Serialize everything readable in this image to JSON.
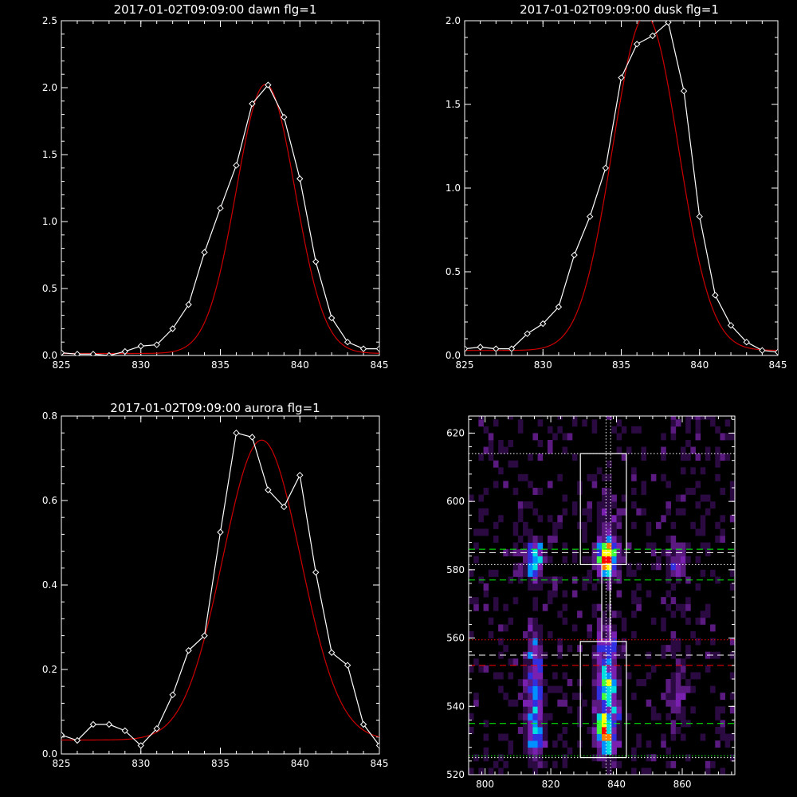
{
  "chart_data": [
    {
      "type": "line",
      "title": "2017-01-02T09:09:00 dawn flg=1",
      "xlim": [
        825,
        845
      ],
      "ylim": [
        0,
        2.5
      ],
      "xticks": [
        825,
        830,
        835,
        840,
        845
      ],
      "yticks": [
        0.0,
        0.5,
        1.0,
        1.5,
        2.0,
        2.5
      ],
      "ytick_labels": [
        "0.0",
        "0.5",
        "1.0",
        "1.5",
        "2.0",
        "2.5"
      ],
      "series": [
        {
          "kind": "data",
          "color": "#ffffff",
          "marker": "diamond",
          "x": [
            825,
            826,
            827,
            828,
            829,
            830,
            831,
            832,
            833,
            834,
            835,
            836,
            837,
            838,
            839,
            840,
            841,
            842,
            843,
            844,
            845
          ],
          "y": [
            0.02,
            0.01,
            0.01,
            0.0,
            0.03,
            0.07,
            0.08,
            0.2,
            0.38,
            0.77,
            1.1,
            1.42,
            1.88,
            2.02,
            1.78,
            1.32,
            0.7,
            0.28,
            0.1,
            0.05,
            0.05
          ]
        },
        {
          "kind": "fit",
          "color": "#cc0000",
          "model": "gaussian",
          "amp": 2.01,
          "center": 837.85,
          "sigma": 1.85,
          "offset": 0.015
        }
      ]
    },
    {
      "type": "line",
      "title": "2017-01-02T09:09:00 dusk flg=1",
      "xlim": [
        825,
        845
      ],
      "ylim": [
        0,
        2.0
      ],
      "xticks": [
        825,
        830,
        835,
        840,
        845
      ],
      "yticks": [
        0.0,
        0.5,
        1.0,
        1.5,
        2.0
      ],
      "ytick_labels": [
        "0.0",
        "0.5",
        "1.0",
        "1.5",
        "2.0"
      ],
      "series": [
        {
          "kind": "data",
          "color": "#ffffff",
          "marker": "diamond",
          "x": [
            825,
            826,
            827,
            828,
            829,
            830,
            831,
            832,
            833,
            834,
            835,
            836,
            837,
            838,
            839,
            840,
            841,
            842,
            843,
            844,
            845
          ],
          "y": [
            0.04,
            0.05,
            0.04,
            0.04,
            0.13,
            0.19,
            0.29,
            0.6,
            0.83,
            1.12,
            1.66,
            1.86,
            1.91,
            1.99,
            1.58,
            0.83,
            0.36,
            0.18,
            0.08,
            0.03,
            0.02
          ]
        },
        {
          "kind": "fit",
          "color": "#cc0000",
          "model": "gaussian",
          "amp": 2.0,
          "center": 836.55,
          "sigma": 2.1,
          "offset": 0.03
        }
      ]
    },
    {
      "type": "line",
      "title": "2017-01-02T09:09:00 aurora flg=1",
      "xlim": [
        825,
        845
      ],
      "ylim": [
        0,
        0.8
      ],
      "xticks": [
        825,
        830,
        835,
        840,
        845
      ],
      "yticks": [
        0.0,
        0.2,
        0.4,
        0.6,
        0.8
      ],
      "ytick_labels": [
        "0.0",
        "0.2",
        "0.4",
        "0.6",
        "0.8"
      ],
      "series": [
        {
          "kind": "data",
          "color": "#ffffff",
          "marker": "diamond",
          "x": [
            825,
            826,
            827,
            828,
            829,
            830,
            831,
            832,
            833,
            834,
            835,
            836,
            837,
            838,
            839,
            840,
            841,
            842,
            843,
            844,
            845
          ],
          "y": [
            0.045,
            0.032,
            0.07,
            0.07,
            0.055,
            0.02,
            0.06,
            0.14,
            0.245,
            0.28,
            0.525,
            0.76,
            0.75,
            0.625,
            0.585,
            0.66,
            0.43,
            0.24,
            0.21,
            0.07,
            0.02
          ]
        },
        {
          "kind": "fit",
          "color": "#cc0000",
          "model": "gaussian",
          "amp": 0.71,
          "center": 837.6,
          "sigma": 2.45,
          "offset": 0.033
        }
      ]
    },
    {
      "type": "heatmap",
      "title": "",
      "xlim": [
        795,
        876
      ],
      "ylim": [
        520,
        625
      ],
      "xticks": [
        800,
        820,
        840,
        860
      ],
      "yticks": [
        520,
        540,
        560,
        580,
        600,
        620
      ],
      "colormap": [
        "#000000",
        "#2a0a40",
        "#5a1a80",
        "#7a20b0",
        "#3030e0",
        "#0090ff",
        "#00e0e0",
        "#40ff40",
        "#ffff00",
        "#ff8000",
        "#ff0000"
      ],
      "blobs": [
        {
          "x": 815,
          "y": 583,
          "sx": 1.8,
          "sy": 3.5,
          "amp": 8.5
        },
        {
          "x": 837,
          "y": 584,
          "sx": 2.2,
          "sy": 3.5,
          "amp": 10.2
        },
        {
          "x": 858,
          "y": 583,
          "sx": 2.5,
          "sy": 3.5,
          "amp": 3.2
        },
        {
          "x": 815,
          "y": 545,
          "sx": 1.8,
          "sy": 13,
          "amp": 4.5
        },
        {
          "x": 815,
          "y": 532,
          "sx": 1.8,
          "sy": 4,
          "amp": 4.0
        },
        {
          "x": 837,
          "y": 545,
          "sx": 2.2,
          "sy": 12,
          "amp": 6.0
        },
        {
          "x": 837,
          "y": 532,
          "sx": 2.0,
          "sy": 4,
          "amp": 5.0
        },
        {
          "x": 858,
          "y": 545,
          "sx": 2.5,
          "sy": 10,
          "amp": 2.0
        },
        {
          "x": 837,
          "y": 597,
          "sx": 2.2,
          "sy": 10,
          "amp": 1.6
        }
      ],
      "boxes": [
        {
          "x0": 829,
          "x1": 843,
          "y0": 581.5,
          "y1": 614
        },
        {
          "x0": 829,
          "x1": 843,
          "y0": 525,
          "y1": 559
        },
        {
          "x0": 835.5,
          "x1": 838,
          "y0": 559,
          "y1": 581.5
        }
      ],
      "hlines": [
        {
          "y": 614,
          "color": "#ffffff",
          "style": "dotted"
        },
        {
          "y": 581.5,
          "color": "#ffffff",
          "style": "dotted"
        },
        {
          "y": 586,
          "color": "#00ff00",
          "style": "dashed"
        },
        {
          "y": 585,
          "color": "#ffffff",
          "style": "dashed"
        },
        {
          "y": 577,
          "color": "#00ff00",
          "style": "dashed"
        },
        {
          "y": 559.5,
          "color": "#ff0000",
          "style": "dotted"
        },
        {
          "y": 555,
          "color": "#ffffff",
          "style": "dashed"
        },
        {
          "y": 552,
          "color": "#ff0000",
          "style": "dashed"
        },
        {
          "y": 535,
          "color": "#00ff00",
          "style": "dashed"
        },
        {
          "y": 525.5,
          "color": "#00ff00",
          "style": "dotted"
        },
        {
          "y": 525,
          "color": "#ffffff",
          "style": "dotted"
        }
      ],
      "vlines": [
        {
          "x": 836.8,
          "color": "#ffffff",
          "style": "dotted"
        },
        {
          "x": 838.2,
          "color": "#ffffff",
          "style": "dotted"
        }
      ]
    }
  ]
}
